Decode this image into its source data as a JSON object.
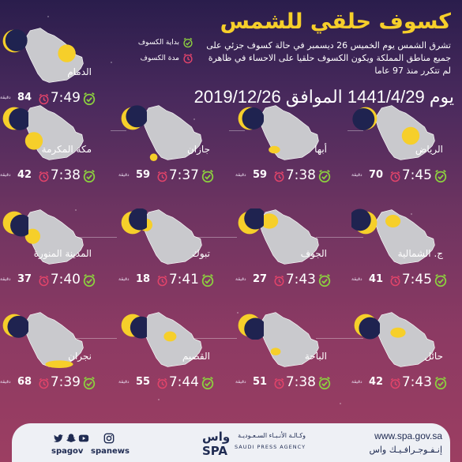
{
  "header": {
    "title": "كسوف حلقي للشمس",
    "description": "تشرق الشمس يوم الخميس 26 ديسمبر في حالة كسوف جزئي على جميع مناطق المملكة ويكون الكسوف حلقيا على الاحساء في ظاهرة لم تتكرر منذ 97 عاما",
    "date": "يوم 1441/4/29 الموافق 2019/12/26"
  },
  "legend": {
    "start_label": "بداية الكسوف",
    "duration_label": "مدة الكسوف"
  },
  "duration_unit": "دقيقة",
  "cities": [
    {
      "name": "الدمام",
      "start": "7:49",
      "duration": "84"
    },
    {
      "name": "الرياض",
      "start": "7:45",
      "duration": "70"
    },
    {
      "name": "أبها",
      "start": "7:38",
      "duration": "59"
    },
    {
      "name": "جازان",
      "start": "7:37",
      "duration": "59"
    },
    {
      "name": "مكة المكرمة",
      "start": "7:38",
      "duration": "42"
    },
    {
      "name": "ج. الشمالية",
      "start": "7:45",
      "duration": "41"
    },
    {
      "name": "الجوف",
      "start": "7:43",
      "duration": "27"
    },
    {
      "name": "تبوك",
      "start": "7:41",
      "duration": "18"
    },
    {
      "name": "المدينة المنورة",
      "start": "7:40",
      "duration": "37"
    },
    {
      "name": "حائل",
      "start": "7:43",
      "duration": "42"
    },
    {
      "name": "الباحة",
      "start": "7:38",
      "duration": "51"
    },
    {
      "name": "القصيم",
      "start": "7:44",
      "duration": "55"
    },
    {
      "name": "نجران",
      "start": "7:39",
      "duration": "68"
    }
  ],
  "footer": {
    "handle_1": "spagov",
    "handle_2": "spanews",
    "agency_ar": "وكـالـة الأنـبـاء السـعـوديـة",
    "agency_en": "SAUDI PRESS AGENCY",
    "website": "www.spa.gov.sa",
    "tagline": "إنـفـوجـرافـيـك واس"
  },
  "colors": {
    "accent_yellow": "#f6cf2a",
    "start_icon_green": "#8ccf3f",
    "duration_icon_red": "#e2446a",
    "map_gray": "#c9c9cd",
    "moon_navy": "#1f2350"
  },
  "icons": {
    "start": "alarm-clock-check-icon",
    "duration": "alarm-clock-icon",
    "sun": "eclipse-sun-icon"
  }
}
